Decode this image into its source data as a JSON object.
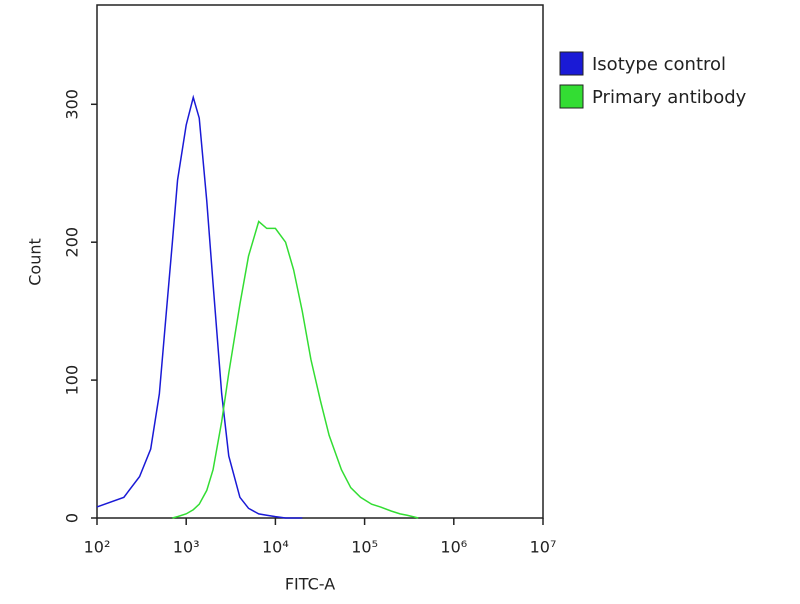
{
  "chart_data": {
    "type": "line",
    "x_label": "FITC-A",
    "y_label": "Count",
    "xscale": "log",
    "x": [
      100,
      200,
      300,
      400,
      500,
      600,
      700,
      800,
      1000,
      1200,
      1400,
      1700,
      2000,
      2500,
      3000,
      4000,
      5000,
      6500,
      8000,
      10000,
      13000,
      16000,
      20000,
      25000,
      32000,
      40000,
      55000,
      70000,
      90000,
      120000,
      150000,
      200000,
      250000,
      300000,
      400000
    ],
    "series": [
      {
        "name": "Isotype control",
        "color": "#1a1ad6",
        "values": [
          8,
          15,
          30,
          50,
          90,
          150,
          200,
          245,
          285,
          305,
          290,
          230,
          170,
          90,
          45,
          15,
          7,
          3,
          2,
          1,
          0,
          0,
          0,
          null,
          null,
          null,
          null,
          null,
          null,
          null,
          null,
          null,
          null,
          null,
          null
        ]
      },
      {
        "name": "Primary antibody",
        "color": "#33dd33",
        "values": [
          null,
          null,
          null,
          null,
          null,
          null,
          0,
          1,
          3,
          6,
          10,
          20,
          35,
          70,
          105,
          155,
          190,
          215,
          210,
          210,
          200,
          180,
          150,
          115,
          85,
          60,
          35,
          22,
          15,
          10,
          8,
          5,
          3,
          2,
          0
        ]
      }
    ],
    "xlim": [
      100,
      10000000
    ],
    "xticks": [
      {
        "value": 100,
        "label": "10²"
      },
      {
        "value": 1000,
        "label": "10³"
      },
      {
        "value": 10000,
        "label": "10⁴"
      },
      {
        "value": 100000,
        "label": "10⁵"
      },
      {
        "value": 1000000,
        "label": "10⁶"
      },
      {
        "value": 10000000,
        "label": "10⁷"
      }
    ],
    "ylim": [
      0,
      372
    ],
    "yticks": [
      0,
      100,
      200,
      300
    ],
    "legend": "right"
  }
}
